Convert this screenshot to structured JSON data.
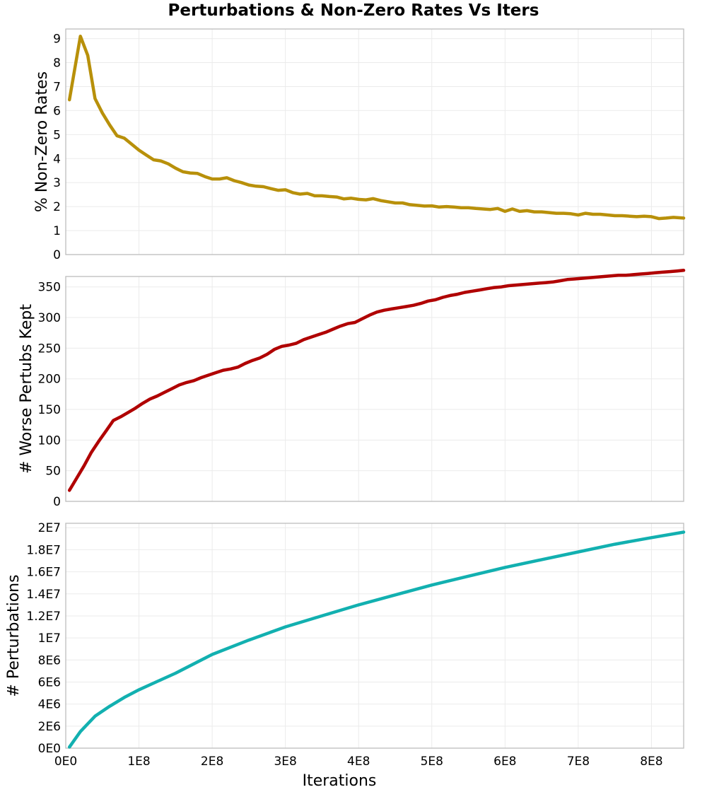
{
  "title": "Perturbations & Non-Zero Rates Vs Iters",
  "x_axis": {
    "label": "Iterations",
    "ticks": [
      "0E0",
      "1E8",
      "2E8",
      "3E8",
      "4E8",
      "5E8",
      "6E8",
      "7E8",
      "8E8"
    ],
    "range": [
      0,
      844000000
    ]
  },
  "chart_data": [
    {
      "type": "line",
      "title": "",
      "xlabel": "Iterations",
      "ylabel": "% Non-Zero Rates",
      "ylim": [
        0,
        9.4
      ],
      "yticks": [
        "0",
        "1",
        "2",
        "3",
        "4",
        "5",
        "6",
        "7",
        "8",
        "9"
      ],
      "grid": true,
      "color": "#b8900a",
      "x": [
        5000000.0,
        20000000.0,
        30000000.0,
        40000000.0,
        50000000.0,
        60000000.0,
        70000000.0,
        80000000.0,
        90000000.0,
        100000000.0,
        110000000.0,
        120000000.0,
        130000000.0,
        140000000.0,
        150000000.0,
        160000000.0,
        170000000.0,
        180000000.0,
        190000000.0,
        200000000.0,
        210000000.0,
        220000000.0,
        230000000.0,
        240000000.0,
        250000000.0,
        260000000.0,
        270000000.0,
        280000000.0,
        290000000.0,
        300000000.0,
        310000000.0,
        320000000.0,
        330000000.0,
        340000000.0,
        350000000.0,
        360000000.0,
        370000000.0,
        380000000.0,
        390000000.0,
        400000000.0,
        410000000.0,
        420000000.0,
        430000000.0,
        440000000.0,
        450000000.0,
        460000000.0,
        470000000.0,
        480000000.0,
        490000000.0,
        500000000.0,
        510000000.0,
        520000000.0,
        530000000.0,
        540000000.0,
        550000000.0,
        560000000.0,
        570000000.0,
        580000000.0,
        590000000.0,
        600000000.0,
        610000000.0,
        620000000.0,
        630000000.0,
        640000000.0,
        650000000.0,
        660000000.0,
        670000000.0,
        680000000.0,
        690000000.0,
        700000000.0,
        710000000.0,
        720000000.0,
        730000000.0,
        740000000.0,
        750000000.0,
        760000000.0,
        770000000.0,
        780000000.0,
        790000000.0,
        800000000.0,
        810000000.0,
        820000000.0,
        830000000.0,
        844000000.0
      ],
      "values": [
        6.45,
        9.1,
        8.3,
        6.5,
        5.9,
        5.4,
        4.95,
        4.85,
        4.6,
        4.35,
        4.15,
        3.95,
        3.9,
        3.78,
        3.6,
        3.45,
        3.4,
        3.38,
        3.25,
        3.15,
        3.15,
        3.2,
        3.08,
        3.0,
        2.9,
        2.85,
        2.83,
        2.75,
        2.68,
        2.7,
        2.58,
        2.52,
        2.55,
        2.45,
        2.45,
        2.42,
        2.4,
        2.32,
        2.35,
        2.3,
        2.28,
        2.33,
        2.25,
        2.2,
        2.15,
        2.15,
        2.08,
        2.05,
        2.02,
        2.03,
        1.98,
        2.0,
        1.98,
        1.95,
        1.95,
        1.92,
        1.9,
        1.88,
        1.92,
        1.8,
        1.9,
        1.8,
        1.83,
        1.78,
        1.78,
        1.75,
        1.72,
        1.72,
        1.7,
        1.65,
        1.72,
        1.68,
        1.68,
        1.65,
        1.62,
        1.62,
        1.6,
        1.58,
        1.6,
        1.58,
        1.5,
        1.52,
        1.55,
        1.52
      ]
    },
    {
      "type": "line",
      "title": "",
      "xlabel": "Iterations",
      "ylabel": "# Worse Pertubs Kept",
      "ylim": [
        0,
        367
      ],
      "yticks": [
        "0",
        "50",
        "100",
        "150",
        "200",
        "250",
        "300",
        "350"
      ],
      "grid": true,
      "color": "#b00000",
      "x": [
        5000000.0,
        15000000.0,
        25000000.0,
        35000000.0,
        45000000.0,
        55000000.0,
        65000000.0,
        75000000.0,
        85000000.0,
        95000000.0,
        105000000.0,
        115000000.0,
        125000000.0,
        135000000.0,
        145000000.0,
        155000000.0,
        165000000.0,
        175000000.0,
        185000000.0,
        195000000.0,
        205000000.0,
        215000000.0,
        225000000.0,
        235000000.0,
        245000000.0,
        255000000.0,
        265000000.0,
        275000000.0,
        285000000.0,
        295000000.0,
        305000000.0,
        315000000.0,
        325000000.0,
        335000000.0,
        345000000.0,
        355000000.0,
        365000000.0,
        375000000.0,
        385000000.0,
        395000000.0,
        405000000.0,
        415000000.0,
        425000000.0,
        435000000.0,
        445000000.0,
        455000000.0,
        465000000.0,
        475000000.0,
        485000000.0,
        495000000.0,
        505000000.0,
        515000000.0,
        525000000.0,
        535000000.0,
        545000000.0,
        555000000.0,
        565000000.0,
        575000000.0,
        585000000.0,
        595000000.0,
        605000000.0,
        615000000.0,
        625000000.0,
        635000000.0,
        645000000.0,
        655000000.0,
        665000000.0,
        675000000.0,
        685000000.0,
        695000000.0,
        705000000.0,
        715000000.0,
        725000000.0,
        735000000.0,
        745000000.0,
        755000000.0,
        765000000.0,
        775000000.0,
        785000000.0,
        795000000.0,
        805000000.0,
        815000000.0,
        825000000.0,
        835000000.0,
        844000000.0
      ],
      "values": [
        18,
        38,
        58,
        80,
        98,
        115,
        132,
        138,
        145,
        152,
        160,
        167,
        172,
        178,
        184,
        190,
        194,
        197,
        202,
        206,
        210,
        214,
        216,
        219,
        225,
        230,
        234,
        240,
        248,
        253,
        255,
        258,
        264,
        268,
        272,
        276,
        281,
        286,
        290,
        292,
        298,
        304,
        309,
        312,
        314,
        316,
        318,
        320,
        323,
        327,
        329,
        333,
        336,
        338,
        341,
        343,
        345,
        347,
        349,
        350,
        352,
        353,
        354,
        355,
        356,
        357,
        358,
        360,
        362,
        363,
        364,
        365,
        366,
        367,
        368,
        369,
        369,
        370,
        371,
        372,
        373,
        374,
        375,
        376,
        377
      ]
    },
    {
      "type": "line",
      "title": "",
      "xlabel": "Iterations",
      "ylabel": "# Perturbations",
      "ylim": [
        0,
        20400000
      ],
      "yticks": [
        "0E0",
        "2E6",
        "4E6",
        "6E6",
        "8E6",
        "1E7",
        "1.2E7",
        "1.4E7",
        "1.6E7",
        "1.8E7",
        "2E7"
      ],
      "grid": true,
      "color": "#12b0b0",
      "x": [
        5000000.0,
        20000000.0,
        40000000.0,
        60000000.0,
        80000000.0,
        100000000.0,
        120000000.0,
        150000000.0,
        200000000.0,
        250000000.0,
        300000000.0,
        350000000.0,
        400000000.0,
        450000000.0,
        500000000.0,
        550000000.0,
        600000000.0,
        650000000.0,
        700000000.0,
        750000000.0,
        800000000.0,
        844000000.0
      ],
      "values": [
        100000,
        1500000,
        2900000,
        3800000,
        4600000,
        5300000,
        5900000,
        6800000,
        8500000,
        9800000,
        11000000,
        12000000,
        13000000,
        13900000,
        14800000,
        15600000,
        16400000,
        17100000,
        17800000,
        18500000,
        19100000,
        19600000
      ]
    }
  ]
}
